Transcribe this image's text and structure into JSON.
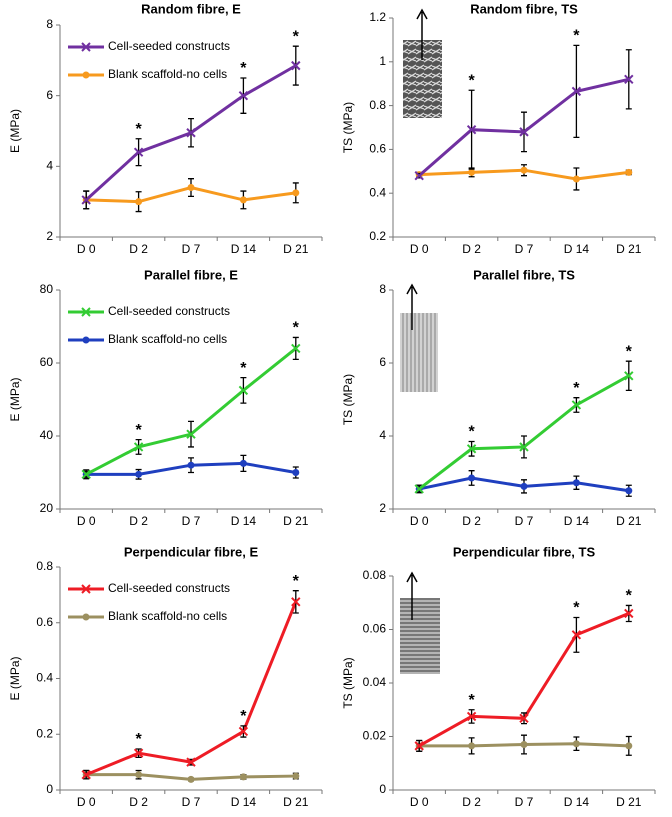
{
  "chart_data": [
    {
      "type": "line",
      "title": "Random fibre, E",
      "ylabel": "E (MPa)",
      "categories": [
        "D 0",
        "D 2",
        "D 7",
        "D 14",
        "D 21"
      ],
      "ylim": [
        2,
        8
      ],
      "yticks": [
        2,
        4,
        6,
        8
      ],
      "series": [
        {
          "name": "Cell-seeded constructs",
          "color": "#7030a0",
          "marker": "x",
          "values": [
            3.05,
            4.4,
            4.95,
            6.0,
            6.85
          ],
          "errors": [
            0.25,
            0.38,
            0.4,
            0.5,
            0.55
          ]
        },
        {
          "name": "Blank scaffold-no cells",
          "color": "#f79a1e",
          "marker": "o",
          "values": [
            3.05,
            3.0,
            3.4,
            3.05,
            3.25
          ],
          "errors": [
            0.25,
            0.28,
            0.25,
            0.25,
            0.28
          ]
        }
      ],
      "markers": [
        null,
        "*",
        null,
        "*",
        "*"
      ]
    },
    {
      "type": "line",
      "title": "Random fibre, TS",
      "ylabel": "TS (MPa)",
      "categories": [
        "D 0",
        "D 2",
        "D 7",
        "D 14",
        "D 21"
      ],
      "ylim": [
        0.2,
        1.2
      ],
      "yticks": [
        0.2,
        0.4,
        0.6,
        0.8,
        1,
        1.2
      ],
      "series": [
        {
          "color": "#7030a0",
          "marker": "x",
          "values": [
            0.48,
            0.69,
            0.68,
            0.865,
            0.92
          ],
          "errors": [
            0.01,
            0.18,
            0.09,
            0.21,
            0.135
          ]
        },
        {
          "color": "#f79a1e",
          "marker": "o",
          "values": [
            0.485,
            0.495,
            0.505,
            0.465,
            0.495
          ],
          "errors": [
            0.01,
            0.02,
            0.025,
            0.05,
            0.01
          ]
        }
      ],
      "markers": [
        null,
        "*",
        null,
        "*",
        null
      ]
    },
    {
      "type": "line",
      "title": "Parallel fibre, E",
      "ylabel": "E (MPa)",
      "categories": [
        "D 0",
        "D 2",
        "D 7",
        "D 14",
        "D 21"
      ],
      "ylim": [
        20,
        80
      ],
      "yticks": [
        20,
        40,
        60,
        80
      ],
      "series": [
        {
          "name": "Cell-seeded constructs",
          "color": "#33cc33",
          "marker": "x",
          "values": [
            29.5,
            37,
            40.5,
            52.5,
            64
          ],
          "errors": [
            0.8,
            2,
            3.5,
            3.5,
            3
          ]
        },
        {
          "name": "Blank scaffold-no cells",
          "color": "#1f3fbf",
          "marker": "o",
          "values": [
            29.5,
            29.5,
            32,
            32.5,
            30
          ],
          "errors": [
            1.2,
            1.3,
            2,
            2.2,
            1.5
          ]
        }
      ],
      "markers": [
        null,
        "*",
        null,
        "*",
        "*"
      ]
    },
    {
      "type": "line",
      "title": "Parallel fibre, TS",
      "ylabel": "TS (MPa)",
      "categories": [
        "D 0",
        "D 2",
        "D 7",
        "D 14",
        "D 21"
      ],
      "ylim": [
        2,
        8
      ],
      "yticks": [
        2,
        4,
        6,
        8
      ],
      "series": [
        {
          "color": "#33cc33",
          "marker": "x",
          "values": [
            2.55,
            3.65,
            3.7,
            4.85,
            5.65
          ],
          "errors": [
            0.1,
            0.2,
            0.3,
            0.2,
            0.4
          ]
        },
        {
          "color": "#1f3fbf",
          "marker": "o",
          "values": [
            2.55,
            2.85,
            2.62,
            2.72,
            2.5
          ],
          "errors": [
            0.1,
            0.2,
            0.18,
            0.18,
            0.15
          ]
        }
      ],
      "markers": [
        null,
        "*",
        null,
        "*",
        "*"
      ]
    },
    {
      "type": "line",
      "title": "Perpendicular fibre, E",
      "ylabel": "E (MPa)",
      "categories": [
        "D 0",
        "D 2",
        "D 7",
        "D 14",
        "D 21"
      ],
      "ylim": [
        0,
        0.8
      ],
      "yticks": [
        0,
        0.2,
        0.4,
        0.6,
        0.8
      ],
      "series": [
        {
          "name": "Cell-seeded constructs",
          "color": "#ee1c25",
          "marker": "x",
          "values": [
            0.055,
            0.132,
            0.1,
            0.21,
            0.675
          ],
          "errors": [
            0.015,
            0.015,
            0.01,
            0.02,
            0.04
          ]
        },
        {
          "name": "Blank scaffold-no cells",
          "color": "#9c9060",
          "marker": "o",
          "values": [
            0.055,
            0.055,
            0.038,
            0.047,
            0.05
          ],
          "errors": [
            0.015,
            0.015,
            0.005,
            0.008,
            0.01
          ]
        }
      ],
      "markers": [
        null,
        "*",
        null,
        "*",
        "*"
      ]
    },
    {
      "type": "line",
      "title": "Perpendicular fibre, TS",
      "ylabel": "TS (MPa)",
      "categories": [
        "D 0",
        "D 2",
        "D 7",
        "D 14",
        "D 21"
      ],
      "ylim": [
        0,
        0.08
      ],
      "yticks": [
        0,
        0.02,
        0.04,
        0.06,
        0.08
      ],
      "series": [
        {
          "color": "#ee1c25",
          "marker": "x",
          "values": [
            0.0165,
            0.0275,
            0.0268,
            0.058,
            0.066
          ],
          "errors": [
            0.002,
            0.0025,
            0.002,
            0.0065,
            0.003
          ]
        },
        {
          "color": "#9c9060",
          "marker": "o",
          "values": [
            0.0165,
            0.0165,
            0.017,
            0.0173,
            0.0165
          ],
          "errors": [
            0.002,
            0.003,
            0.0035,
            0.0025,
            0.0035
          ]
        }
      ],
      "markers": [
        null,
        "*",
        null,
        "*",
        "*"
      ]
    }
  ]
}
